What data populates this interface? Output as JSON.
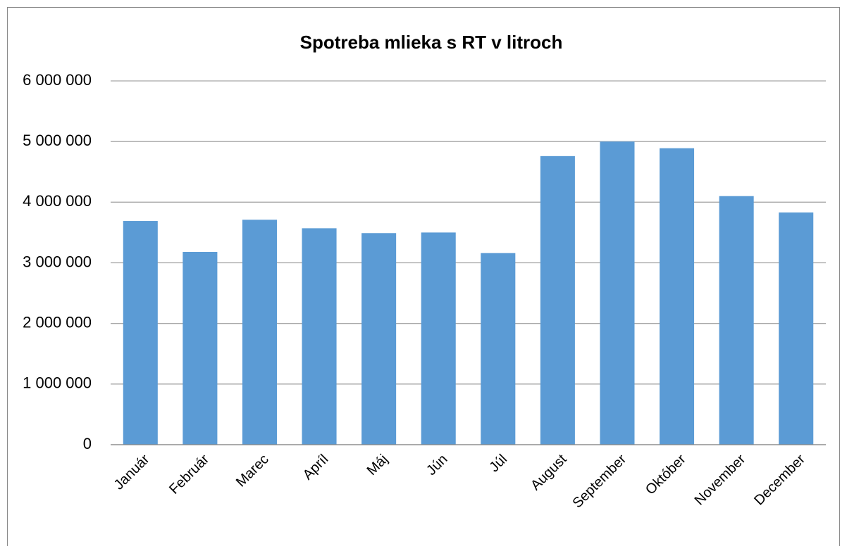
{
  "chart_data": {
    "type": "bar",
    "title": "Spotreba mlieka s RT v litroch",
    "categories": [
      "Január",
      "Február",
      "Marec",
      "Apríl",
      "Máj",
      "Jún",
      "Júl",
      "August",
      "September",
      "Október",
      "November",
      "December"
    ],
    "values": [
      3690000,
      3180000,
      3710000,
      3570000,
      3490000,
      3500000,
      3160000,
      4760000,
      5000000,
      4890000,
      4100000,
      3830000
    ],
    "color": "#5b9bd5",
    "ylim": [
      0,
      6000000
    ],
    "yticks": [
      0,
      {
        "value": 1000000,
        "label": "1 000 000"
      },
      {
        "value": 2000000,
        "label": "2 000 000"
      },
      {
        "value": 3000000,
        "label": "3 000 000"
      },
      {
        "value": 4000000,
        "label": "4 000 000"
      },
      {
        "value": 5000000,
        "label": "5 000 000"
      },
      {
        "value": 6000000,
        "label": "6 000 000"
      }
    ],
    "grid": true
  }
}
